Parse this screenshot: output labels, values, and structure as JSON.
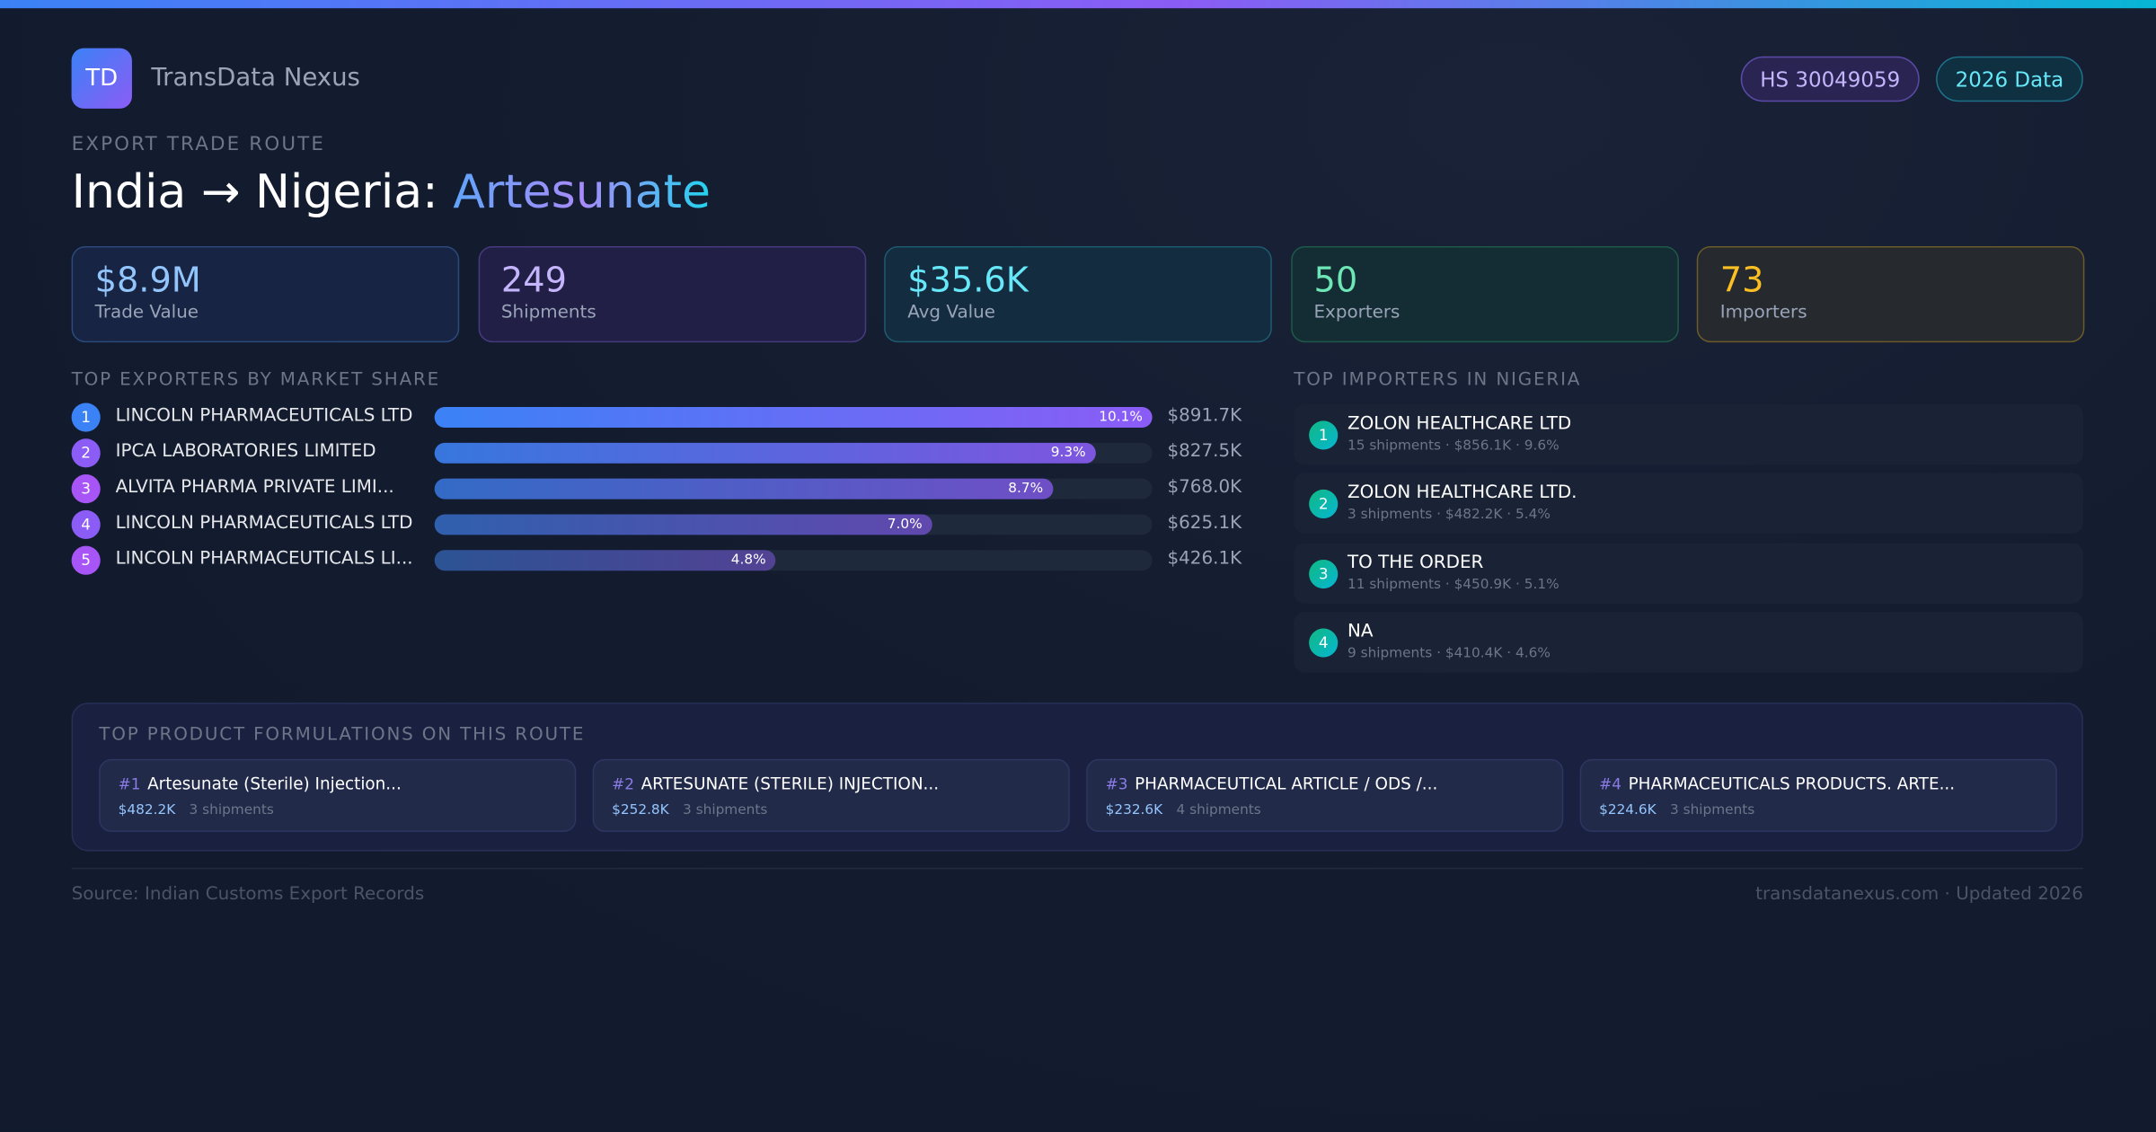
{
  "brand": {
    "logo": "TD",
    "name": "TransData Nexus"
  },
  "badges": {
    "hs": "HS 30049059",
    "year": "2026 Data"
  },
  "kicker": "EXPORT TRADE ROUTE",
  "title": {
    "route": "India → Nigeria: ",
    "product": "Artesunate"
  },
  "stats": [
    {
      "value": "$8.9M",
      "label": "Trade Value",
      "color": "#93c5fd"
    },
    {
      "value": "249",
      "label": "Shipments",
      "color": "#c4b5fd"
    },
    {
      "value": "$35.6K",
      "label": "Avg Value",
      "color": "#67e8f9"
    },
    {
      "value": "50",
      "label": "Exporters",
      "color": "#6ee7b7"
    },
    {
      "value": "73",
      "label": "Importers",
      "color": "#fbbf24"
    }
  ],
  "exporters": {
    "title": "TOP EXPORTERS BY MARKET SHARE",
    "items": [
      {
        "rank": "1",
        "name": "LINCOLN PHARMACEUTICALS LTD",
        "share_label": "10.1%",
        "share": 10.1,
        "value": "$891.7K"
      },
      {
        "rank": "2",
        "name": "IPCA LABORATORIES LIMITED",
        "share_label": "9.3%",
        "share": 9.3,
        "value": "$827.5K"
      },
      {
        "rank": "3",
        "name": "ALVITA PHARMA PRIVATE LIMI...",
        "share_label": "8.7%",
        "share": 8.7,
        "value": "$768.0K"
      },
      {
        "rank": "4",
        "name": "LINCOLN PHARMACEUTICALS LTD",
        "share_label": "7.0%",
        "share": 7.0,
        "value": "$625.1K"
      },
      {
        "rank": "5",
        "name": "LINCOLN PHARMACEUTICALS LI...",
        "share_label": "4.8%",
        "share": 4.8,
        "value": "$426.1K"
      }
    ]
  },
  "importers": {
    "title": "TOP IMPORTERS IN NIGERIA",
    "items": [
      {
        "rank": "1",
        "name": "ZOLON HEALTHCARE LTD",
        "meta": "15 shipments · $856.1K · 9.6%"
      },
      {
        "rank": "2",
        "name": "ZOLON HEALTHCARE LTD.",
        "meta": "3 shipments · $482.2K · 5.4%"
      },
      {
        "rank": "3",
        "name": "TO THE ORDER",
        "meta": "11 shipments · $450.9K · 5.1%"
      },
      {
        "rank": "4",
        "name": "NA",
        "meta": "9 shipments · $410.4K · 4.6%"
      }
    ]
  },
  "formulations": {
    "title": "TOP PRODUCT FORMULATIONS ON THIS ROUTE",
    "items": [
      {
        "rank": "#1",
        "name": "Artesunate (Sterile) Injection...",
        "value": "$482.2K",
        "shipments": "3 shipments"
      },
      {
        "rank": "#2",
        "name": "ARTESUNATE (STERILE) INJECTION...",
        "value": "$252.8K",
        "shipments": "3 shipments"
      },
      {
        "rank": "#3",
        "name": "PHARMACEUTICAL ARTICLE / ODS /...",
        "value": "$232.6K",
        "shipments": "4 shipments"
      },
      {
        "rank": "#4",
        "name": "PHARMACEUTICALS PRODUCTS. ARTE...",
        "value": "$224.6K",
        "shipments": "3 shipments"
      }
    ]
  },
  "footer": {
    "source": "Source: Indian Customs Export Records",
    "site": "transdatanexus.com · Updated 2026"
  }
}
